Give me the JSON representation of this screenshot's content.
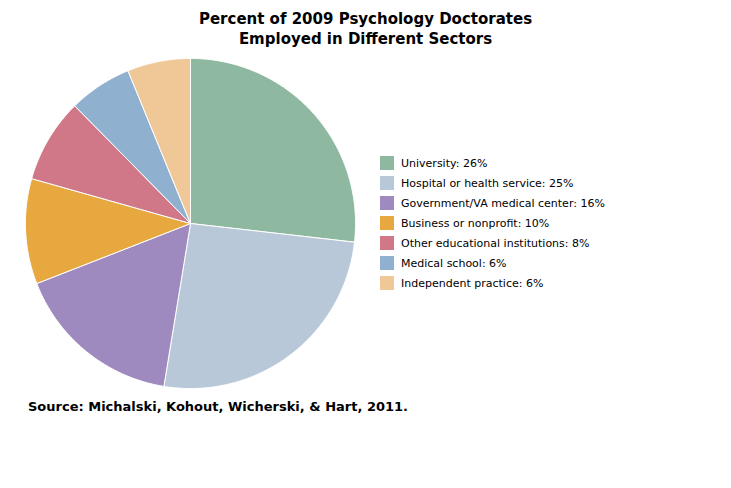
{
  "chart_data": {
    "type": "pie",
    "title": "Percent of 2009 Psychology Doctorates\nEmployed in Different Sectors",
    "caption": "Source: Michalski, Kohout, Wicherski, & Hart, 2011.",
    "categories": [
      "University: 26%",
      "Hospital or health service: 25%",
      "Government/VA medical center: 16%",
      "Business or nonprofit: 10%",
      "Other educational institutions: 8%",
      "Medical school: 6%",
      "Independent practice: 6%"
    ],
    "values": [
      26,
      25,
      16,
      10,
      8,
      6,
      6
    ],
    "colors": [
      "#8FB8A0",
      "#B8C8D8",
      "#9E8ABF",
      "#E8A840",
      "#D07888",
      "#90B0D0",
      "#F0C898"
    ],
    "legend": "right"
  }
}
